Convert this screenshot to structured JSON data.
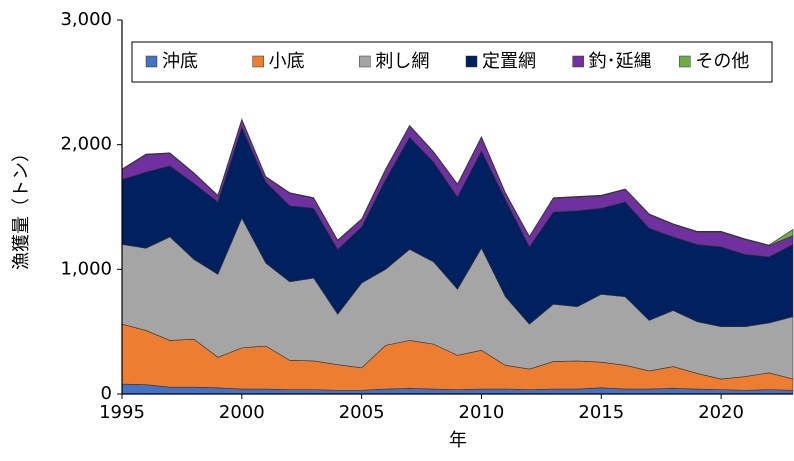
{
  "chart_data": {
    "type": "stacked-area",
    "y_label": "漁獲量（トン）",
    "x_label": "年",
    "x": [
      1995,
      1996,
      1997,
      1998,
      1999,
      2000,
      2001,
      2002,
      2003,
      2004,
      2005,
      2006,
      2007,
      2008,
      2009,
      2010,
      2011,
      2012,
      2013,
      2014,
      2015,
      2016,
      2017,
      2018,
      2019,
      2020,
      2021,
      2022,
      2023
    ],
    "xlim": [
      1995,
      2023
    ],
    "xticks": [
      1995,
      2000,
      2005,
      2010,
      2015,
      2020
    ],
    "ylim": [
      0,
      3000
    ],
    "yticks": [
      0,
      {
        "value": 1000,
        "label": "1,000"
      },
      {
        "value": 2000,
        "label": "2,000"
      },
      {
        "value": 3000,
        "label": "3,000"
      }
    ],
    "legend": "top",
    "series": [
      {
        "name": "沖底",
        "color": "#4472c4",
        "values": [
          80,
          75,
          55,
          55,
          50,
          40,
          40,
          35,
          35,
          30,
          30,
          40,
          45,
          40,
          35,
          40,
          40,
          35,
          40,
          40,
          50,
          40,
          40,
          45,
          40,
          35,
          30,
          35,
          30
        ]
      },
      {
        "name": "小底",
        "color": "#ed7d31",
        "values": [
          480,
          435,
          375,
          385,
          245,
          330,
          345,
          235,
          230,
          205,
          180,
          350,
          385,
          360,
          275,
          310,
          190,
          165,
          220,
          225,
          205,
          190,
          145,
          175,
          125,
          85,
          110,
          135,
          90
        ]
      },
      {
        "name": "刺し網",
        "color": "#a5a5a5",
        "values": [
          640,
          660,
          830,
          640,
          665,
          1040,
          665,
          630,
          665,
          405,
          680,
          610,
          730,
          660,
          530,
          820,
          550,
          360,
          460,
          435,
          545,
          550,
          405,
          450,
          415,
          420,
          400,
          400,
          500
        ]
      },
      {
        "name": "定置網",
        "color": "#002060",
        "values": [
          520,
          610,
          570,
          610,
          580,
          730,
          650,
          610,
          560,
          520,
          450,
          720,
          900,
          800,
          740,
          780,
          780,
          620,
          740,
          770,
          690,
          760,
          740,
          590,
          620,
          640,
          580,
          530,
          580
        ]
      },
      {
        "name": "釣･延縄",
        "color": "#7030a0",
        "values": [
          80,
          140,
          100,
          80,
          50,
          60,
          40,
          100,
          80,
          70,
          60,
          80,
          90,
          80,
          100,
          110,
          50,
          80,
          110,
          110,
          100,
          100,
          110,
          100,
          100,
          120,
          120,
          90,
          70
        ]
      },
      {
        "name": "その他",
        "color": "#70ad47",
        "values": [
          5,
          5,
          5,
          5,
          5,
          5,
          5,
          5,
          5,
          5,
          5,
          5,
          5,
          5,
          5,
          5,
          5,
          5,
          5,
          5,
          5,
          5,
          5,
          5,
          5,
          5,
          5,
          5,
          50
        ]
      }
    ]
  }
}
